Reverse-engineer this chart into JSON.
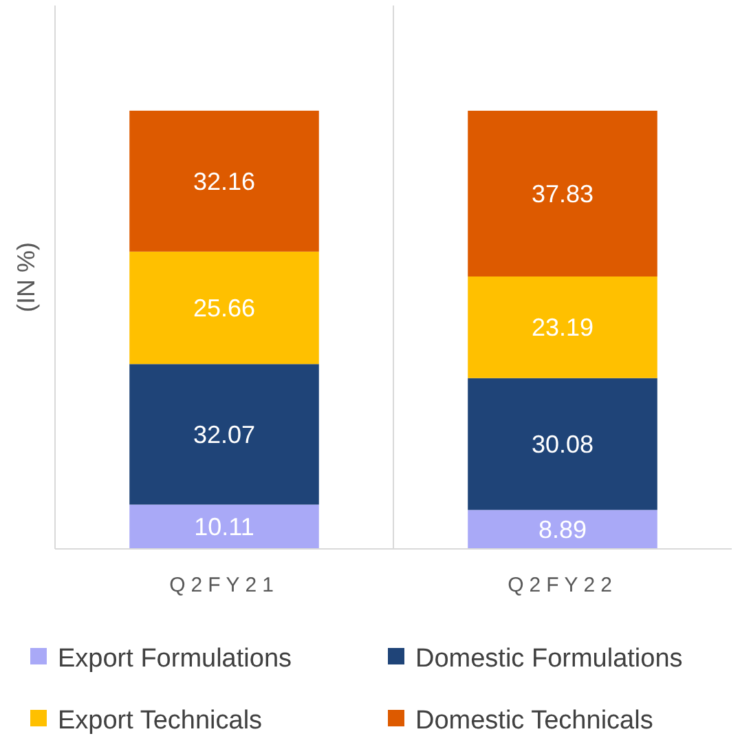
{
  "chart_data": {
    "type": "bar",
    "stacked": true,
    "ylabel": "(IN %)",
    "categories": [
      "Q2FY21",
      "Q2FY22"
    ],
    "ylim": [
      0,
      124
    ],
    "data_labels": true,
    "grid": "x",
    "legend": "bottom",
    "series": [
      {
        "name": "Export Formulations",
        "color": "#a9a9f7",
        "values": [
          10.11,
          8.89
        ]
      },
      {
        "name": "Domestic Formulations",
        "color": "#1f4478",
        "values": [
          32.07,
          30.08
        ]
      },
      {
        "name": "Export Technicals",
        "color": "#ffc000",
        "values": [
          25.66,
          23.19
        ]
      },
      {
        "name": "Domestic Technicals",
        "color": "#dd5a00",
        "values": [
          32.16,
          37.83
        ]
      }
    ]
  }
}
